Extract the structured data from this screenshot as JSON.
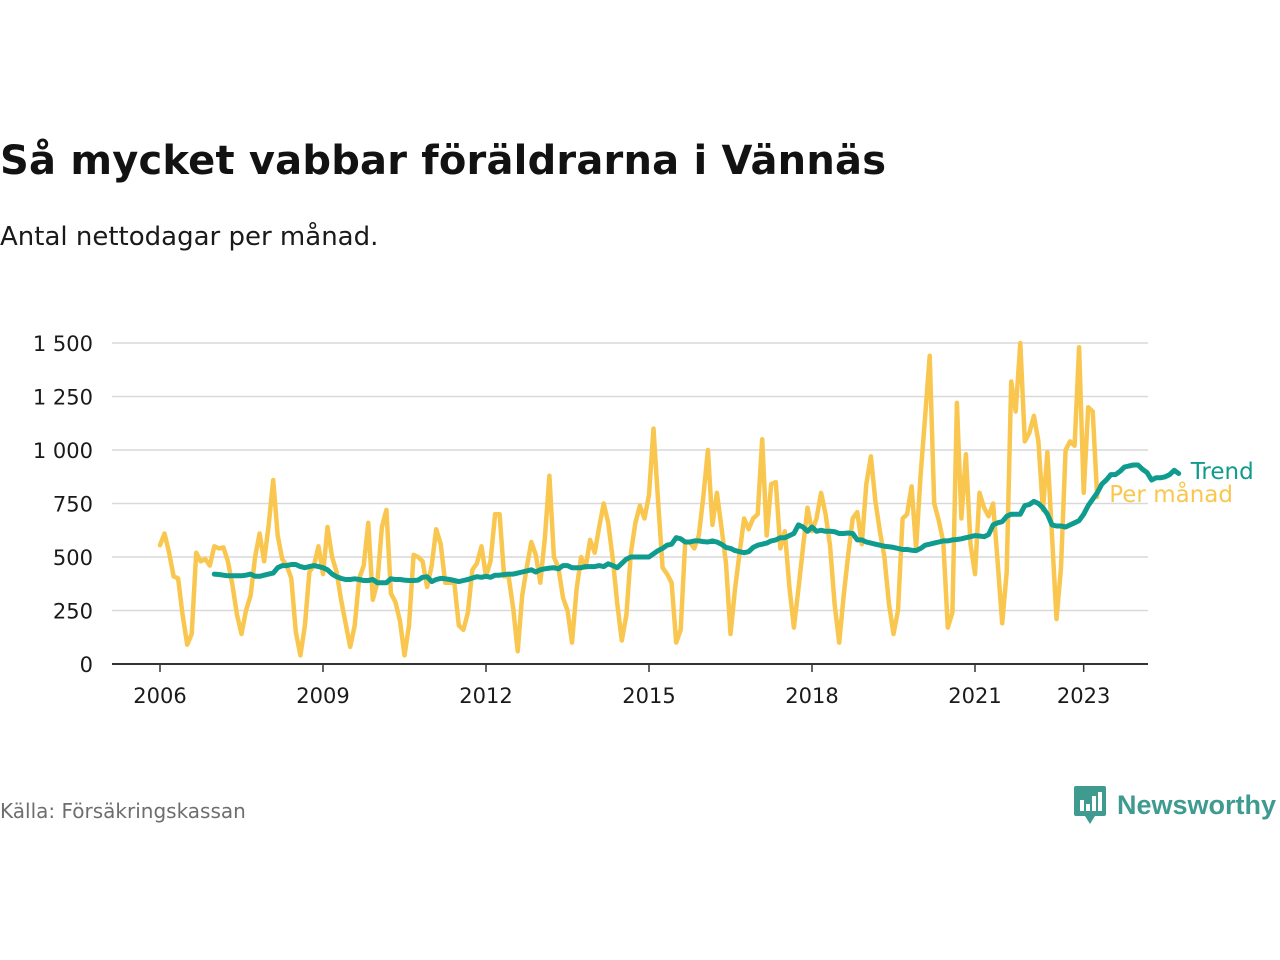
{
  "title": "Så mycket vabbar föräldrarna i Vännäs",
  "subtitle": "Antal nettodagar per månad.",
  "source": "Källa: Försäkringskassan",
  "brand": {
    "name": "Newsworthy",
    "icon": "newsworthy-logo-icon"
  },
  "colors": {
    "per_month": "#f9c74f",
    "trend": "#0f9b8e",
    "grid": "#d9d9d9",
    "axis": "#333333",
    "text": "#1a1a1a"
  },
  "chart_data": {
    "type": "line",
    "x_start": "2006-01",
    "x_step": "month",
    "x_ticks": [
      "2006",
      "2009",
      "2012",
      "2015",
      "2018",
      "2021",
      "2023"
    ],
    "y_ticks": [
      "0",
      "250",
      "500",
      "750",
      "1 000",
      "1 250",
      "1 500"
    ],
    "ylim": [
      0,
      1500
    ],
    "grid": true,
    "legend": "line-end labels",
    "series": [
      {
        "name": "Per månad",
        "start": "2006-01",
        "values": [
          555,
          610,
          520,
          410,
          400,
          230,
          90,
          140,
          520,
          480,
          490,
          460,
          550,
          540,
          545,
          480,
          370,
          230,
          140,
          250,
          320,
          500,
          610,
          480,
          650,
          860,
          600,
          490,
          460,
          400,
          150,
          40,
          180,
          430,
          460,
          550,
          420,
          640,
          500,
          430,
          300,
          190,
          80,
          180,
          400,
          460,
          660,
          300,
          380,
          640,
          720,
          330,
          290,
          200,
          40,
          180,
          510,
          500,
          480,
          360,
          460,
          630,
          560,
          380,
          380,
          380,
          180,
          160,
          240,
          440,
          470,
          550,
          410,
          480,
          700,
          700,
          410,
          410,
          260,
          60,
          320,
          450,
          570,
          510,
          380,
          590,
          880,
          500,
          450,
          310,
          250,
          100,
          350,
          500,
          450,
          580,
          520,
          640,
          750,
          660,
          490,
          280,
          110,
          230,
          520,
          660,
          740,
          680,
          790,
          1100,
          760,
          450,
          420,
          380,
          100,
          160,
          570,
          570,
          540,
          600,
          780,
          1000,
          650,
          800,
          640,
          470,
          140,
          350,
          520,
          680,
          630,
          680,
          700,
          1050,
          600,
          840,
          850,
          540,
          620,
          360,
          170,
          350,
          540,
          730,
          620,
          680,
          800,
          700,
          550,
          280,
          100,
          320,
          510,
          680,
          710,
          560,
          840,
          970,
          760,
          620,
          500,
          280,
          140,
          250,
          680,
          700,
          830,
          540,
          890,
          1160,
          1440,
          750,
          670,
          570,
          170,
          240,
          1220,
          680,
          980,
          560,
          420,
          800,
          730,
          690,
          750,
          480,
          190,
          430,
          1320,
          1180,
          1500,
          1040,
          1080,
          1160,
          1040,
          720,
          990,
          600,
          210,
          450,
          1000,
          1040,
          1020,
          1480,
          800,
          1200,
          1180,
          780
        ]
      },
      {
        "name": "Trend",
        "start": "2007-01",
        "values": [
          420,
          418,
          415,
          412,
          412,
          412,
          412,
          415,
          420,
          410,
          410,
          415,
          420,
          425,
          450,
          460,
          460,
          465,
          465,
          455,
          450,
          455,
          460,
          455,
          450,
          440,
          420,
          408,
          400,
          395,
          395,
          398,
          395,
          390,
          390,
          395,
          380,
          380,
          380,
          398,
          395,
          395,
          392,
          390,
          390,
          392,
          405,
          408,
          385,
          395,
          400,
          398,
          395,
          390,
          385,
          390,
          395,
          402,
          408,
          405,
          410,
          405,
          415,
          415,
          418,
          420,
          420,
          425,
          430,
          435,
          440,
          430,
          440,
          445,
          448,
          450,
          445,
          460,
          460,
          450,
          450,
          450,
          455,
          455,
          455,
          460,
          455,
          468,
          460,
          450,
          470,
          490,
          500,
          500,
          500,
          500,
          500,
          515,
          530,
          540,
          555,
          560,
          590,
          585,
          570,
          570,
          575,
          575,
          572,
          570,
          575,
          570,
          560,
          545,
          540,
          530,
          525,
          520,
          525,
          545,
          555,
          560,
          565,
          575,
          580,
          590,
          590,
          600,
          610,
          650,
          640,
          620,
          640,
          620,
          625,
          620,
          620,
          618,
          610,
          610,
          612,
          610,
          580,
          580,
          570,
          565,
          560,
          555,
          550,
          548,
          545,
          540,
          535,
          535,
          532,
          530,
          540,
          555,
          560,
          565,
          570,
          575,
          575,
          580,
          582,
          585,
          590,
          595,
          600,
          598,
          595,
          605,
          650,
          660,
          665,
          690,
          700,
          700,
          700,
          740,
          745,
          760,
          750,
          730,
          700,
          650,
          645,
          645,
          640,
          650,
          660,
          670,
          700,
          740,
          770,
          800,
          840,
          860,
          885,
          885,
          900,
          920,
          925,
          930,
          930,
          910,
          895,
          860,
          870,
          870,
          875,
          885,
          905,
          890
        ]
      }
    ]
  }
}
